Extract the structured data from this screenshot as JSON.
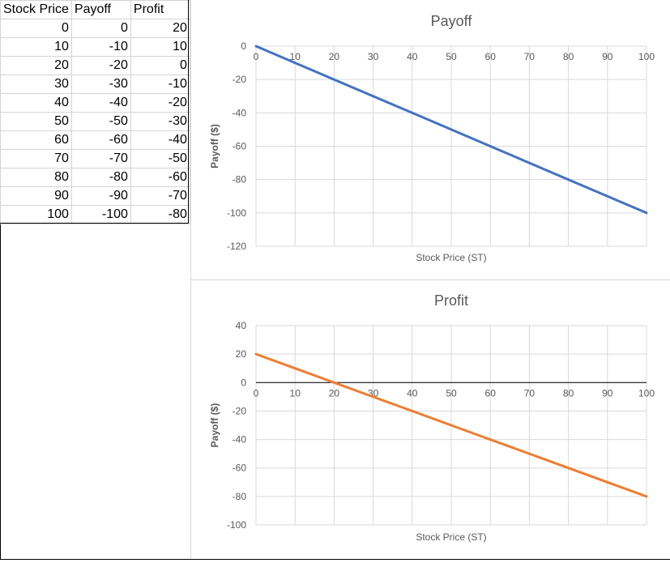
{
  "table": {
    "headers": [
      "Stock Price",
      "Payoff",
      "Profit"
    ],
    "rows": [
      [
        "0",
        "0",
        "20"
      ],
      [
        "10",
        "-10",
        "10"
      ],
      [
        "20",
        "-20",
        "0"
      ],
      [
        "30",
        "-30",
        "-10"
      ],
      [
        "40",
        "-40",
        "-20"
      ],
      [
        "50",
        "-50",
        "-30"
      ],
      [
        "60",
        "-60",
        "-40"
      ],
      [
        "70",
        "-70",
        "-50"
      ],
      [
        "80",
        "-80",
        "-60"
      ],
      [
        "90",
        "-90",
        "-70"
      ],
      [
        "100",
        "-100",
        "-80"
      ]
    ]
  },
  "chart_data": [
    {
      "type": "line",
      "title": "Payoff",
      "xlabel": "Stock Price (ST)",
      "ylabel": "Payoff ($)",
      "x": [
        0,
        10,
        20,
        30,
        40,
        50,
        60,
        70,
        80,
        90,
        100
      ],
      "series": [
        {
          "values": [
            0,
            -10,
            -20,
            -30,
            -40,
            -50,
            -60,
            -70,
            -80,
            -90,
            -100
          ],
          "color": "#4472c4"
        }
      ],
      "xlim": [
        0,
        100
      ],
      "ylim": [
        -120,
        0
      ],
      "xticks": [
        0,
        10,
        20,
        30,
        40,
        50,
        60,
        70,
        80,
        90,
        100
      ],
      "yticks": [
        0,
        -20,
        -40,
        -60,
        -80,
        -100,
        -120
      ],
      "grid": true,
      "legend": "none"
    },
    {
      "type": "line",
      "title": "Profit",
      "xlabel": "Stock Price (ST)",
      "ylabel": "Payoff ($)",
      "x": [
        0,
        10,
        20,
        30,
        40,
        50,
        60,
        70,
        80,
        90,
        100
      ],
      "series": [
        {
          "values": [
            20,
            10,
            0,
            -10,
            -20,
            -30,
            -40,
            -50,
            -60,
            -70,
            -80
          ],
          "color": "#ed7d31"
        }
      ],
      "xlim": [
        0,
        100
      ],
      "ylim": [
        -100,
        40
      ],
      "xticks": [
        0,
        10,
        20,
        30,
        40,
        50,
        60,
        70,
        80,
        90,
        100
      ],
      "yticks": [
        40,
        20,
        0,
        -20,
        -40,
        -60,
        -80,
        -100
      ],
      "grid": true,
      "legend": "none"
    }
  ]
}
